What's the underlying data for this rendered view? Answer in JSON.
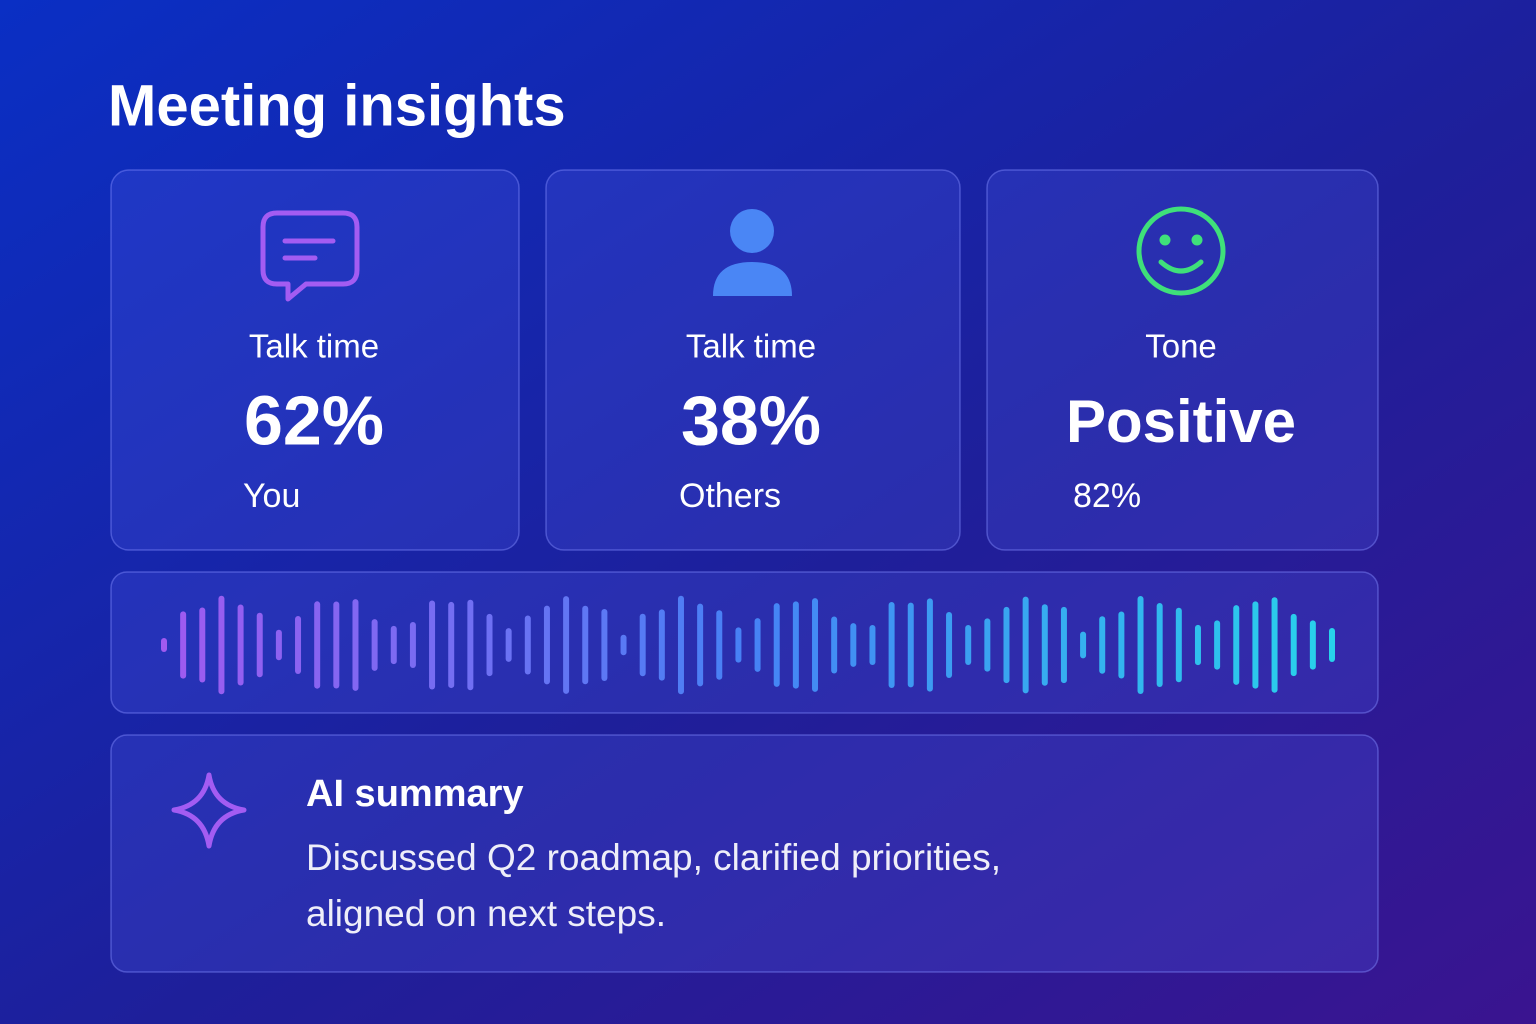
{
  "header": {
    "title": "Meeting insights"
  },
  "cards": [
    {
      "label": "Talk time",
      "value": "62%",
      "caption": "You"
    },
    {
      "label": "Talk time",
      "value": "38%",
      "caption": "Others"
    },
    {
      "label": "Tone",
      "value": "Positive",
      "caption": "82%"
    }
  ],
  "summary": {
    "title": "AI summary",
    "lines": [
      "Discussed Q2 roadmap, clarified priorities,",
      "aligned on next steps."
    ]
  }
}
